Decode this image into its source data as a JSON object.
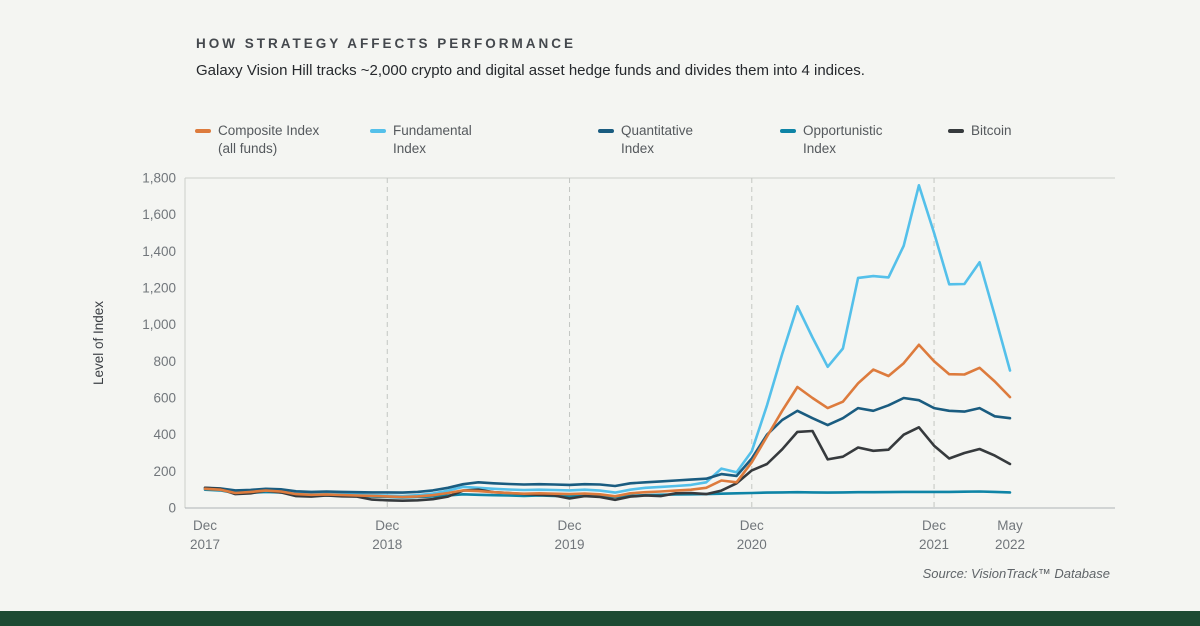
{
  "header": {
    "title": "HOW STRATEGY AFFECTS PERFORMANCE",
    "subtitle": "Galaxy Vision Hill tracks ~2,000 crypto and digital asset hedge funds and divides them into 4 indices."
  },
  "legend": {
    "items": [
      {
        "lines": [
          "Composite Index",
          "(all funds)"
        ]
      },
      {
        "lines": [
          "Fundamental",
          "Index"
        ]
      },
      {
        "lines": [
          "Quantitative",
          "Index"
        ]
      },
      {
        "lines": [
          "Opportunistic",
          "Index"
        ]
      },
      {
        "lines": [
          "Bitcoin"
        ]
      }
    ]
  },
  "chart_data": {
    "type": "line",
    "title": "HOW STRATEGY AFFECTS PERFORMANCE",
    "xlabel": "",
    "ylabel": "Level of Index",
    "ylim": [
      0,
      1800
    ],
    "grid": {
      "horizontal": false,
      "vertical_dashed": true
    },
    "legend_position": "top",
    "n_points": 54,
    "x_unit": "months from Dec 2017 to May 2022",
    "y_ticks": [
      {
        "value": 0,
        "label": "0"
      },
      {
        "value": 200,
        "label": "200"
      },
      {
        "value": 400,
        "label": "400"
      },
      {
        "value": 600,
        "label": "600"
      },
      {
        "value": 800,
        "label": "800"
      },
      {
        "value": 1000,
        "label": "1,000"
      },
      {
        "value": 1200,
        "label": "1,200"
      },
      {
        "value": 1400,
        "label": "1,400"
      },
      {
        "value": 1600,
        "label": "1,600"
      },
      {
        "value": 1800,
        "label": "1,800"
      }
    ],
    "x_ticks": [
      {
        "index": 0,
        "line1": "Dec",
        "line2": "2017"
      },
      {
        "index": 12,
        "line1": "Dec",
        "line2": "2018"
      },
      {
        "index": 24,
        "line1": "Dec",
        "line2": "2019"
      },
      {
        "index": 36,
        "line1": "Dec",
        "line2": "2020"
      },
      {
        "index": 48,
        "line1": "Dec",
        "line2": "2021"
      },
      {
        "index": 53,
        "line1": "May",
        "line2": "2022"
      }
    ],
    "dashed_grid_indices": [
      12,
      24,
      36,
      48
    ],
    "series": [
      {
        "name": "Composite Index (all funds)",
        "color": "#dd7b3d",
        "values": [
          105,
          100,
          82,
          88,
          95,
          90,
          76,
          72,
          74,
          71,
          68,
          66,
          63,
          60,
          63,
          70,
          82,
          96,
          92,
          86,
          81,
          78,
          80,
          78,
          76,
          79,
          75,
          64,
          80,
          86,
          90,
          95,
          100,
          110,
          150,
          140,
          250,
          390,
          530,
          660,
          600,
          545,
          580,
          680,
          755,
          720,
          790,
          890,
          800,
          730,
          728,
          765,
          690,
          605
        ]
      },
      {
        "name": "Fundamental Index",
        "color": "#54c0ea",
        "values": [
          105,
          101,
          86,
          90,
          96,
          93,
          81,
          76,
          78,
          76,
          73,
          70,
          68,
          65,
          70,
          79,
          95,
          115,
          110,
          105,
          101,
          98,
          100,
          98,
          96,
          100,
          95,
          84,
          100,
          110,
          115,
          120,
          126,
          140,
          215,
          195,
          310,
          560,
          840,
          1100,
          930,
          770,
          870,
          1255,
          1265,
          1258,
          1430,
          1760,
          1500,
          1220,
          1222,
          1340,
          1050,
          750
        ]
      },
      {
        "name": "Quantitative Index",
        "color": "#1a5c80",
        "values": [
          110,
          107,
          96,
          99,
          105,
          102,
          91,
          88,
          90,
          88,
          86,
          85,
          85,
          84,
          88,
          96,
          110,
          130,
          140,
          135,
          131,
          128,
          130,
          128,
          126,
          130,
          128,
          120,
          135,
          140,
          145,
          150,
          155,
          160,
          185,
          175,
          270,
          400,
          480,
          530,
          490,
          452,
          490,
          545,
          530,
          560,
          600,
          588,
          545,
          530,
          526,
          545,
          500,
          490
        ]
      },
      {
        "name": "Opportunistic Index",
        "color": "#0e84a6",
        "values": [
          100,
          96,
          81,
          83,
          88,
          85,
          73,
          69,
          68,
          66,
          64,
          62,
          60,
          58,
          60,
          63,
          68,
          75,
          72,
          70,
          68,
          66,
          68,
          66,
          64,
          66,
          64,
          60,
          66,
          70,
          72,
          74,
          75,
          76,
          78,
          80,
          82,
          84,
          85,
          86,
          85,
          84,
          85,
          86,
          86,
          87,
          88,
          88,
          88,
          88,
          89,
          90,
          88,
          85
        ]
      },
      {
        "name": "Bitcoin",
        "color": "#363a3d",
        "values": [
          110,
          104,
          76,
          80,
          95,
          85,
          65,
          62,
          68,
          64,
          62,
          46,
          42,
          40,
          42,
          48,
          62,
          95,
          100,
          86,
          82,
          76,
          72,
          68,
          52,
          65,
          60,
          45,
          62,
          68,
          65,
          80,
          82,
          76,
          95,
          135,
          205,
          240,
          320,
          415,
          420,
          265,
          280,
          330,
          312,
          318,
          400,
          440,
          340,
          270,
          300,
          322,
          286,
          240
        ]
      }
    ]
  },
  "source": "Source: VisionTrack™ Database"
}
